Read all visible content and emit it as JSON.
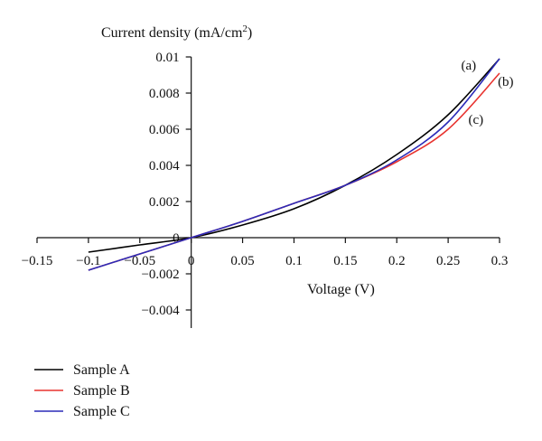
{
  "chart_data": {
    "type": "line",
    "ylabel": "Current density (mA/cm",
    "ylabel_sup": "2",
    "ylabel_close": ")",
    "xlabel": "Voltage (V)",
    "xlim": [
      -0.15,
      0.3
    ],
    "ylim": [
      -0.005,
      0.01
    ],
    "x_ticks": [
      -0.15,
      -0.1,
      -0.05,
      0,
      0.05,
      0.1,
      0.15,
      0.2,
      0.25,
      0.3
    ],
    "x_tick_labels": [
      "−0.15",
      "−0.1",
      "−0.05",
      "0",
      "0.05",
      "0.1",
      "0.15",
      "0.2",
      "0.25",
      "0.3"
    ],
    "y_ticks": [
      -0.004,
      -0.002,
      0,
      0.002,
      0.004,
      0.006,
      0.008,
      0.01
    ],
    "y_tick_labels": [
      "−0.004",
      "−0.002",
      "0",
      "0.002",
      "0.004",
      "0.006",
      "0.008",
      "0.01"
    ],
    "grid": false,
    "legend_position": "bottom-left",
    "series": [
      {
        "name": "Sample A",
        "color": "#000000",
        "x": [
          -0.1,
          -0.05,
          0,
          0.05,
          0.1,
          0.15,
          0.2,
          0.25,
          0.3
        ],
        "y": [
          -0.0008,
          -0.0004,
          0,
          0.0007,
          0.0016,
          0.0029,
          0.0046,
          0.0068,
          0.0099
        ]
      },
      {
        "name": "Sample B",
        "color": "#e8332f",
        "x": [
          -0.1,
          -0.05,
          0,
          0.05,
          0.1,
          0.15,
          0.2,
          0.25,
          0.3
        ],
        "y": [
          -0.0018,
          -0.0009,
          0,
          0.0009,
          0.0019,
          0.0029,
          0.0042,
          0.006,
          0.0091
        ]
      },
      {
        "name": "Sample C",
        "color": "#2b2bb8",
        "x": [
          -0.1,
          -0.05,
          0,
          0.05,
          0.1,
          0.15,
          0.2,
          0.25,
          0.3
        ],
        "y": [
          -0.0018,
          -0.0009,
          0,
          0.0009,
          0.0019,
          0.0029,
          0.0043,
          0.0064,
          0.0099
        ]
      }
    ],
    "annotations": [
      {
        "text": "(a)",
        "x": 0.27,
        "y": 0.0093
      },
      {
        "text": "(b)",
        "x": 0.306,
        "y": 0.0084
      },
      {
        "text": "(c)",
        "x": 0.277,
        "y": 0.0063
      }
    ]
  }
}
